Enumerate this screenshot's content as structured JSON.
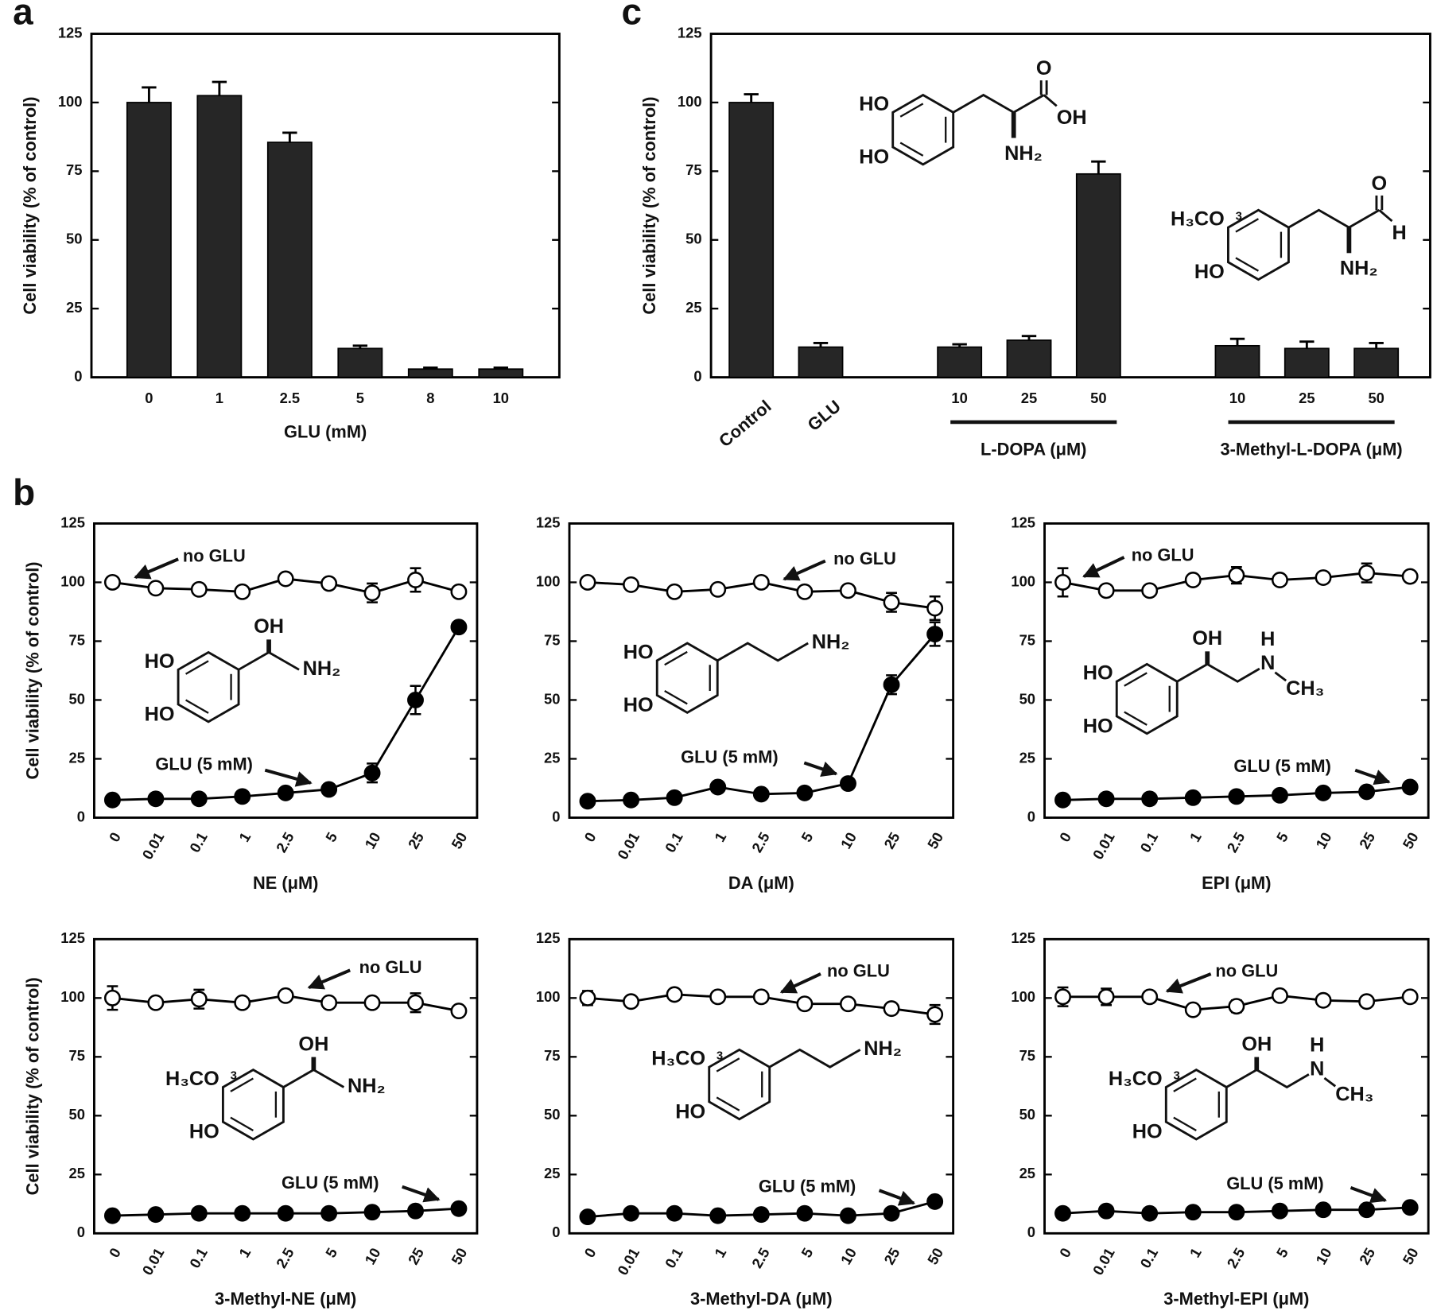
{
  "chart_data": [
    {
      "type": "bar",
      "panel_label": "a",
      "categories": [
        "0",
        "1",
        "2.5",
        "5",
        "8",
        "10"
      ],
      "values": [
        100,
        102.5,
        85.5,
        10.5,
        3,
        3
      ],
      "errors": [
        5.5,
        5,
        3.5,
        1,
        0.5,
        0.5
      ],
      "color": "#262626",
      "ylim": [
        0,
        125
      ],
      "yticks": [
        0,
        25,
        50,
        75,
        100,
        125
      ],
      "xlabel": "GLU (mM)",
      "ylabel": "Cell viability (% of control)"
    },
    {
      "type": "bar",
      "panel_label": "c",
      "categories": [
        "Control",
        "GLU",
        null,
        "10",
        "25",
        "50",
        null,
        "10",
        "25",
        "50"
      ],
      "values": [
        100,
        11,
        null,
        11,
        13.5,
        74,
        null,
        11.5,
        10.5,
        10.5
      ],
      "errors": [
        3,
        1.5,
        null,
        1,
        1.5,
        4.5,
        null,
        2.5,
        2.5,
        2
      ],
      "color": "#262626",
      "ylim": [
        0,
        125
      ],
      "yticks": [
        0,
        25,
        50,
        75,
        100,
        125
      ],
      "ylabel": "Cell viability (% of control)",
      "groups": [
        "L-DOPA (μM)",
        "3-Methyl-L-DOPA (μM)"
      ],
      "structure_labels": [
        [
          "HO",
          "HO",
          "NH₂",
          "O",
          "OH"
        ],
        [
          "H₃CO",
          "3",
          "HO",
          "NH₂",
          "O",
          "H"
        ]
      ]
    },
    {
      "type": "line",
      "panel_label": "b",
      "categories": [
        "0",
        "0.01",
        "0.1",
        "1",
        "2.5",
        "5",
        "10",
        "25",
        "50"
      ],
      "ylim": [
        0,
        125
      ],
      "yticks": [
        0,
        25,
        50,
        75,
        100,
        125
      ],
      "xlabel": "NE (μM)",
      "ylabel": "Cell viability (% of control)",
      "series": [
        {
          "name": "no GLU",
          "color": "#000000",
          "fill": "#ffffff",
          "values": [
            100,
            97.5,
            97,
            96,
            101.5,
            99.5,
            95.5,
            101,
            96
          ],
          "errors": [
            1,
            1,
            1,
            1,
            1,
            1,
            4,
            5,
            1.5
          ]
        },
        {
          "name": "GLU (5 mM)",
          "color": "#000000",
          "fill": "#000000",
          "values": [
            7.5,
            8,
            8,
            9,
            10.5,
            12,
            19,
            50,
            81
          ],
          "errors": [
            1,
            1,
            1,
            1,
            1,
            1,
            4,
            6,
            1
          ]
        }
      ],
      "structure_labels": [
        [
          "HO",
          "HO",
          "OH",
          "NH₂"
        ]
      ]
    },
    {
      "type": "line",
      "categories": [
        "0",
        "0.01",
        "0.1",
        "1",
        "2.5",
        "5",
        "10",
        "25",
        "50"
      ],
      "ylim": [
        0,
        125
      ],
      "yticks": [
        0,
        25,
        50,
        75,
        100,
        125
      ],
      "xlabel": "DA (μM)",
      "series": [
        {
          "name": "no GLU",
          "color": "#000000",
          "fill": "#ffffff",
          "values": [
            100,
            99,
            96,
            97,
            100,
            96,
            96.5,
            91.5,
            89
          ],
          "errors": [
            1,
            1,
            1,
            1,
            1,
            1,
            1,
            4,
            5
          ]
        },
        {
          "name": "GLU (5 mM)",
          "color": "#000000",
          "fill": "#000000",
          "values": [
            7,
            7.5,
            8.5,
            13,
            10,
            10.5,
            14.5,
            56.5,
            78
          ],
          "errors": [
            1,
            1,
            1,
            1,
            1,
            1,
            1,
            4,
            5
          ]
        }
      ],
      "structure_labels": [
        [
          "HO",
          "HO",
          "NH₂"
        ]
      ]
    },
    {
      "type": "line",
      "categories": [
        "0",
        "0.01",
        "0.1",
        "1",
        "2.5",
        "5",
        "10",
        "25",
        "50"
      ],
      "ylim": [
        0,
        125
      ],
      "yticks": [
        0,
        25,
        50,
        75,
        100,
        125
      ],
      "xlabel": "EPI (μM)",
      "series": [
        {
          "name": "no GLU",
          "color": "#000000",
          "fill": "#ffffff",
          "values": [
            100,
            96.5,
            96.5,
            101,
            103,
            101,
            102,
            104,
            102.5
          ],
          "errors": [
            6,
            2,
            1,
            1,
            3.5,
            1,
            1,
            4,
            1
          ]
        },
        {
          "name": "GLU (5 mM)",
          "color": "#000000",
          "fill": "#000000",
          "values": [
            7.5,
            8,
            8,
            8.5,
            9,
            9.5,
            10.5,
            11,
            13
          ],
          "errors": [
            1,
            1,
            1,
            1,
            1,
            1,
            1,
            1,
            1
          ]
        }
      ],
      "structure_labels": [
        [
          "HO",
          "HO",
          "OH",
          "H",
          "N",
          "CH₃"
        ]
      ]
    },
    {
      "type": "line",
      "categories": [
        "0",
        "0.01",
        "0.1",
        "1",
        "2.5",
        "5",
        "10",
        "25",
        "50"
      ],
      "ylim": [
        0,
        125
      ],
      "yticks": [
        0,
        25,
        50,
        75,
        100,
        125
      ],
      "xlabel": "3-Methyl-NE (μM)",
      "ylabel": "Cell viability (% of control)",
      "series": [
        {
          "name": "no GLU",
          "color": "#000000",
          "fill": "#ffffff",
          "values": [
            100,
            98,
            99.5,
            98,
            101,
            98,
            98,
            98,
            94.5
          ],
          "errors": [
            5,
            1,
            4,
            1,
            2,
            1,
            1,
            4,
            1
          ]
        },
        {
          "name": "GLU (5 mM)",
          "color": "#000000",
          "fill": "#000000",
          "values": [
            7.5,
            8,
            8.5,
            8.5,
            8.5,
            8.5,
            9,
            9.5,
            10.5
          ],
          "errors": [
            1,
            1,
            1,
            1,
            1,
            1,
            1,
            1,
            1
          ]
        }
      ],
      "structure_labels": [
        [
          "H₃CO",
          "3",
          "HO",
          "OH",
          "NH₂"
        ]
      ]
    },
    {
      "type": "line",
      "categories": [
        "0",
        "0.01",
        "0.1",
        "1",
        "2.5",
        "5",
        "10",
        "25",
        "50"
      ],
      "ylim": [
        0,
        125
      ],
      "yticks": [
        0,
        25,
        50,
        75,
        100,
        125
      ],
      "xlabel": "3-Methyl-DA (μM)",
      "series": [
        {
          "name": "no GLU",
          "color": "#000000",
          "fill": "#ffffff",
          "values": [
            100,
            98.5,
            101.5,
            100.5,
            100.5,
            97.5,
            97.5,
            95.5,
            93
          ],
          "errors": [
            3,
            1,
            1,
            1,
            1,
            1,
            1,
            1,
            4
          ]
        },
        {
          "name": "GLU (5 mM)",
          "color": "#000000",
          "fill": "#000000",
          "values": [
            7,
            8.5,
            8.5,
            7.5,
            8,
            8.5,
            7.5,
            8.5,
            13.5
          ],
          "errors": [
            1,
            1,
            1,
            1,
            1,
            1,
            1,
            1,
            1
          ]
        }
      ],
      "structure_labels": [
        [
          "H₃CO",
          "3",
          "HO",
          "NH₂"
        ]
      ]
    },
    {
      "type": "line",
      "categories": [
        "0",
        "0.01",
        "0.1",
        "1",
        "2.5",
        "5",
        "10",
        "25",
        "50"
      ],
      "ylim": [
        0,
        125
      ],
      "yticks": [
        0,
        25,
        50,
        75,
        100,
        125
      ],
      "xlabel": "3-Methyl-EPI (μM)",
      "series": [
        {
          "name": "no GLU",
          "color": "#000000",
          "fill": "#ffffff",
          "values": [
            100.5,
            100.5,
            100.5,
            95,
            96.5,
            101,
            99,
            98.5,
            100.5
          ],
          "errors": [
            4,
            3.5,
            1,
            1,
            2.5,
            1,
            1,
            1,
            1
          ]
        },
        {
          "name": "GLU (5 mM)",
          "color": "#000000",
          "fill": "#000000",
          "values": [
            8.5,
            9.5,
            8.5,
            9,
            9,
            9.5,
            10,
            10,
            11
          ],
          "errors": [
            1,
            1,
            1,
            1,
            1,
            1,
            1,
            1,
            1
          ]
        }
      ],
      "structure_labels": [
        [
          "H₃CO",
          "3",
          "HO",
          "OH",
          "H",
          "N",
          "CH₃"
        ]
      ]
    }
  ]
}
